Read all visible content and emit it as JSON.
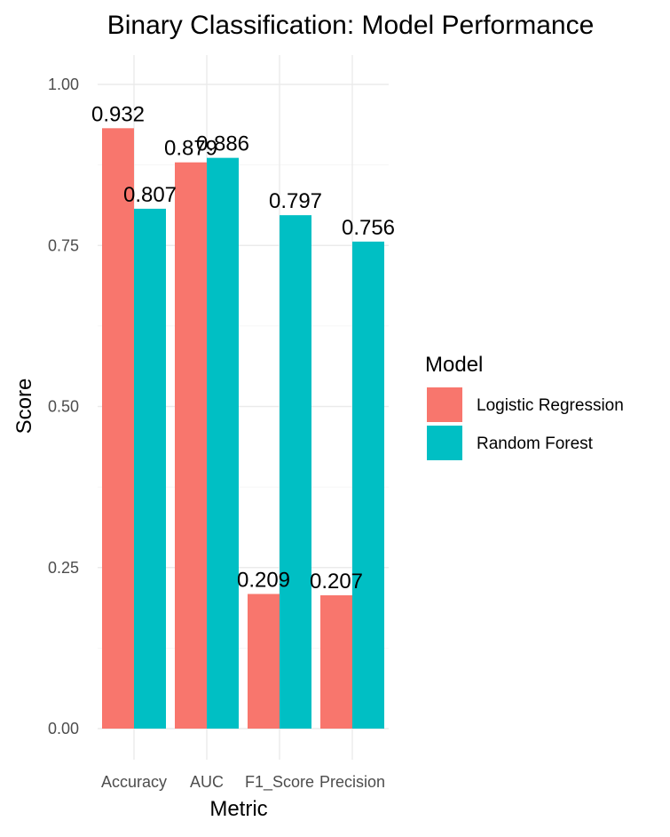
{
  "chart_data": {
    "type": "bar",
    "title": "Binary Classification: Model Performance",
    "xlabel": "Metric",
    "ylabel": "Score",
    "categories": [
      "Accuracy",
      "AUC",
      "F1_Score",
      "Precision"
    ],
    "series": [
      {
        "name": "Logistic Regression",
        "color": "#F8766D",
        "values": [
          0.932,
          0.879,
          0.209,
          0.207
        ]
      },
      {
        "name": "Random Forest",
        "color": "#00BFC4",
        "values": [
          0.807,
          0.886,
          0.797,
          0.756
        ]
      }
    ],
    "data_labels": [
      [
        "0.932",
        "0.879",
        "0.209",
        "0.207"
      ],
      [
        "0.807",
        "0.886",
        "0.797",
        "0.756"
      ]
    ],
    "ylim": [
      0,
      1
    ],
    "yticks": [
      0,
      0.25,
      0.5,
      0.75,
      1.0
    ],
    "ytick_labels": [
      "0.00",
      "0.25",
      "0.50",
      "0.75",
      "1.00"
    ],
    "grid": true,
    "legend": {
      "title": "Model",
      "placement": "right"
    }
  }
}
